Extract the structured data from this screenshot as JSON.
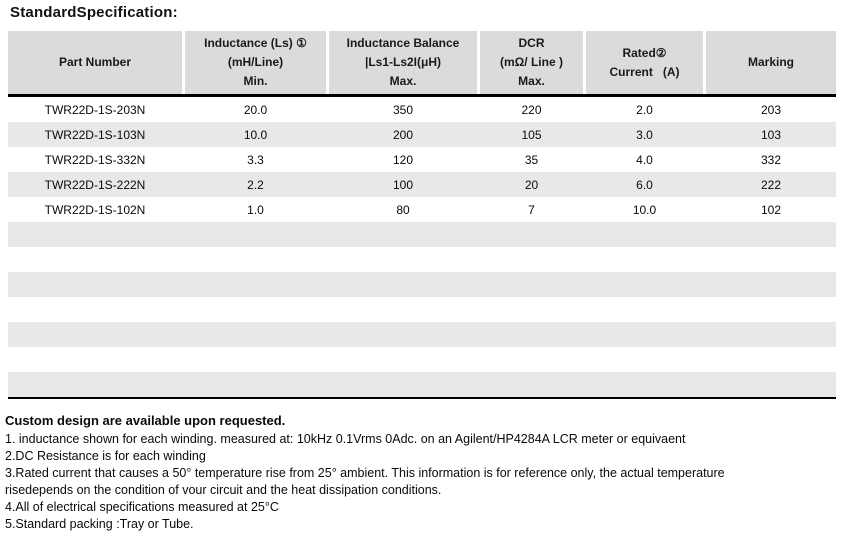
{
  "page": {
    "title": "StandardSpecification:"
  },
  "colors": {
    "header_bg": "#DBDBDB",
    "stripe_bg": "#E8E8E8",
    "line": "#000000"
  },
  "table": {
    "columns": [
      {
        "id": "part-number",
        "lines": [
          "Part Number"
        ]
      },
      {
        "id": "inductance",
        "lines": [
          "Inductance (Ls) ①",
          "(mH/Line)",
          "Min."
        ]
      },
      {
        "id": "inductance-balance",
        "lines": [
          "Inductance Balance",
          "|Ls1-Ls2I(μH)",
          "Max."
        ]
      },
      {
        "id": "dcr",
        "lines": [
          "DCR",
          "(mΩ/ Line )",
          "Max."
        ]
      },
      {
        "id": "rated-current",
        "lines": [
          "Rated②",
          "Current   (A)"
        ]
      },
      {
        "id": "marking",
        "lines": [
          "Marking"
        ]
      }
    ],
    "rows": [
      [
        "TWR22D-1S-203N",
        "20.0",
        "350",
        "220",
        "2.0",
        "203"
      ],
      [
        "TWR22D-1S-103N",
        "10.0",
        "200",
        "105",
        "3.0",
        "103"
      ],
      [
        "TWR22D-1S-332N",
        "3.3",
        "120",
        "35",
        "4.0",
        "332"
      ],
      [
        "TWR22D-1S-222N",
        "2.2",
        "100",
        "20",
        "6.0",
        "222"
      ],
      [
        "TWR22D-1S-102N",
        "1.0",
        "80",
        "7",
        "10.0",
        "102"
      ]
    ],
    "empty_row_count": 7
  },
  "notes": {
    "heading": "Custom design are available upon requested.",
    "lines": [
      "1. inductance shown for each winding. measured at: 10kHz 0.1Vrms 0Adc. on an Agilent/HP4284A LCR meter or equivaent",
      "2.DC Resistance is for each winding",
      "3.Rated current that causes a 50° temperature rise from 25° ambient. This information is for reference only, the actual temperature",
      "risedepends on the condition of vour circuit and the heat dissipation conditions.",
      "4.All of electrical specifications measured at 25°C",
      "5.Standard packing :Tray or Tube."
    ]
  }
}
